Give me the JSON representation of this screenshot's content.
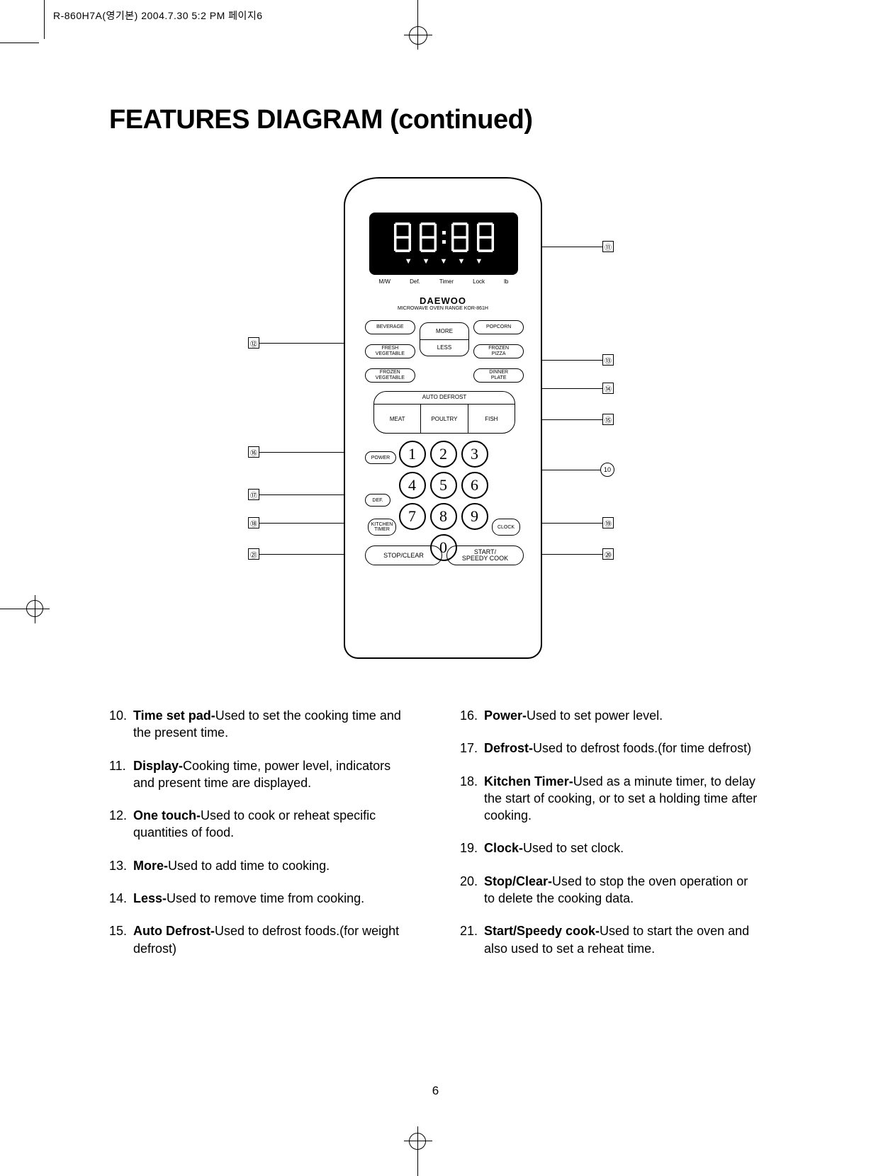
{
  "meta_header": "R-860H7A(영기본)  2004.7.30 5:2 PM  페이지6",
  "title": "FEATURES DIAGRAM (continued)",
  "page_number": "6",
  "panel": {
    "sublabels": [
      "M/W",
      "Def.",
      "Timer",
      "Lock",
      "lb"
    ],
    "brand": "DAEWOO",
    "model": "MICROWAVE OVEN RANGE KOR-861H",
    "onetouch": {
      "left": [
        "BEVERAGE",
        "FRESH\nVEGETABLE",
        "FROZEN\nVEGETABLE"
      ],
      "more": "MORE",
      "less": "LESS",
      "right": [
        "POPCORN",
        "FROZEN\nPIZZA",
        "DINNER\nPLATE"
      ]
    },
    "auto_defrost": {
      "label": "AUTO DEFROST",
      "items": [
        "MEAT",
        "POULTRY",
        "FISH"
      ]
    },
    "keypad": [
      "1",
      "2",
      "3",
      "4",
      "5",
      "6",
      "7",
      "8",
      "9",
      "0"
    ],
    "power": "POWER",
    "def": "DEF.",
    "kitchen_timer": "KITCHEN\nTIMER",
    "clock": "CLOCK",
    "stop_clear": "STOP/CLEAR",
    "start": "START/\nSPEEDY COOK"
  },
  "callouts": {
    "c12": "⑫",
    "c16": "⑯",
    "c17": "⑰",
    "c18": "⑱",
    "c21": "㉑",
    "c11": "⑪",
    "c13": "⑬",
    "c14": "⑭",
    "c15": "⑮",
    "c20": "⑳",
    "c19": "⑲",
    "c10": "⑩"
  },
  "descriptions_left": [
    {
      "n": "10.",
      "b": "Time set pad-",
      "t": "Used to set the cooking time and the present time."
    },
    {
      "n": "11.",
      "b": "Display-",
      "t": "Cooking time, power level, indicators and present time are displayed."
    },
    {
      "n": "12.",
      "b": "One touch-",
      "t": "Used to cook or reheat specific quantities of food."
    },
    {
      "n": "13.",
      "b": "More-",
      "t": "Used to add time to cooking."
    },
    {
      "n": "14.",
      "b": "Less-",
      "t": "Used to remove time from cooking."
    },
    {
      "n": "15.",
      "b": "Auto Defrost-",
      "t": "Used to defrost foods.(for weight defrost)"
    }
  ],
  "descriptions_right": [
    {
      "n": "16.",
      "b": "Power-",
      "t": "Used to set power level."
    },
    {
      "n": "17.",
      "b": "Defrost-",
      "t": "Used to defrost foods.(for time defrost)"
    },
    {
      "n": "18.",
      "b": "Kitchen Timer-",
      "t": "Used as a minute timer, to delay the start of cooking, or to set a holding time after cooking."
    },
    {
      "n": "19.",
      "b": "Clock-",
      "t": "Used to set clock."
    },
    {
      "n": "20.",
      "b": "Stop/Clear-",
      "t": "Used to stop the oven operation or to delete the cooking data."
    },
    {
      "n": "21.",
      "b": "Start/Speedy cook-",
      "t": "Used to start the oven and also used to set a reheat time."
    }
  ]
}
